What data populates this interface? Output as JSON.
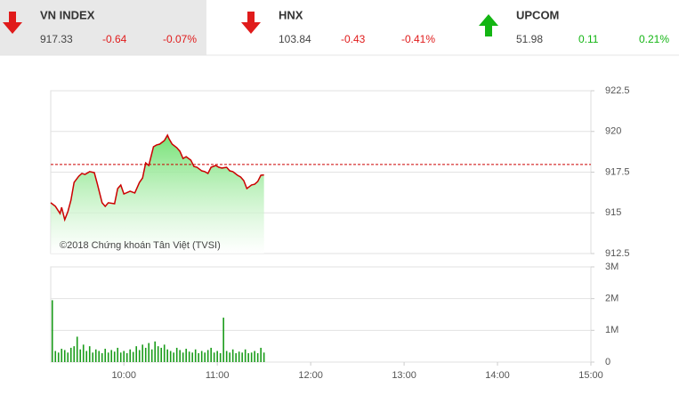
{
  "indices": [
    {
      "name": "VN INDEX",
      "value": 917.33,
      "change": -0.64,
      "percent": "-0.07%"
    },
    {
      "name": "HNX",
      "value": 103.84,
      "change": -0.43,
      "percent": "-0.41%"
    },
    {
      "name": "UPCOM",
      "value": 51.98,
      "change": 0.11,
      "percent": "0.21%"
    }
  ],
  "chart_data": [
    {
      "type": "area",
      "watermark": "©2018 Chứng khoán Tân Việt (TVSI)",
      "color": "#cc0000",
      "fill": "#6fe06f",
      "reference": 917.97,
      "xlim": [
        553,
        900
      ],
      "ylim": [
        912.5,
        922.5
      ],
      "yticks": [
        912.5,
        915,
        917.5,
        920,
        922.5
      ],
      "grid": true,
      "x": [
        553,
        556,
        559,
        560,
        562,
        564,
        566,
        568,
        571,
        573,
        575,
        578,
        581,
        583,
        586,
        588,
        590,
        594,
        596,
        598,
        600,
        604,
        607,
        610,
        612,
        614,
        616,
        619,
        621,
        623,
        626,
        628,
        629,
        631,
        634,
        636,
        638,
        640,
        643,
        645,
        647,
        650,
        652,
        654,
        656,
        659,
        661,
        663,
        666,
        668,
        670,
        673,
        675,
        677,
        679,
        682,
        684,
        686,
        688,
        690
      ],
      "values": [
        915.62,
        915.4,
        914.96,
        915.34,
        914.58,
        915.07,
        915.78,
        916.87,
        917.25,
        917.42,
        917.36,
        917.53,
        917.47,
        916.76,
        915.62,
        915.4,
        915.62,
        915.56,
        916.49,
        916.71,
        916.16,
        916.33,
        916.22,
        916.87,
        917.14,
        918.07,
        917.91,
        919.06,
        919.17,
        919.22,
        919.44,
        919.77,
        919.55,
        919.22,
        919.0,
        918.78,
        918.34,
        918.45,
        918.24,
        917.85,
        917.8,
        917.58,
        917.53,
        917.42,
        917.8,
        917.91,
        917.8,
        917.75,
        917.8,
        917.58,
        917.53,
        917.31,
        917.2,
        916.98,
        916.49,
        916.71,
        916.76,
        916.93,
        917.31,
        917.33
      ]
    },
    {
      "type": "bar",
      "color": "#1a9c1a",
      "xlim": [
        553,
        900
      ],
      "xticks": [
        {
          "value": 600,
          "label": "10:00"
        },
        {
          "value": 660,
          "label": "11:00"
        },
        {
          "value": 720,
          "label": "12:00"
        },
        {
          "value": 780,
          "label": "13:00"
        },
        {
          "value": 840,
          "label": "14:00"
        },
        {
          "value": 900,
          "label": "15:00"
        }
      ],
      "ylim": [
        0,
        3000000
      ],
      "yticks": [
        0,
        {
          "value": 1000000,
          "label": "1M"
        },
        {
          "value": 2000000,
          "label": "2M"
        },
        {
          "value": 3000000,
          "label": "3M"
        }
      ],
      "grid": true,
      "x": [
        554,
        556,
        558,
        560,
        562,
        564,
        566,
        568,
        570,
        572,
        574,
        576,
        578,
        580,
        582,
        584,
        586,
        588,
        590,
        592,
        594,
        596,
        598,
        600,
        602,
        604,
        606,
        608,
        610,
        612,
        614,
        616,
        618,
        620,
        622,
        624,
        626,
        628,
        630,
        632,
        634,
        636,
        638,
        640,
        642,
        644,
        646,
        648,
        650,
        652,
        654,
        656,
        658,
        660,
        662,
        664,
        666,
        668,
        670,
        672,
        674,
        676,
        678,
        680,
        682,
        684,
        686,
        688,
        690
      ],
      "values": [
        1950000,
        350000,
        300000,
        420000,
        380000,
        300000,
        450000,
        500000,
        800000,
        400000,
        550000,
        350000,
        500000,
        300000,
        400000,
        350000,
        280000,
        420000,
        300000,
        380000,
        330000,
        450000,
        300000,
        350000,
        280000,
        400000,
        320000,
        500000,
        380000,
        550000,
        450000,
        600000,
        400000,
        650000,
        500000,
        450000,
        550000,
        400000,
        350000,
        300000,
        450000,
        380000,
        300000,
        420000,
        330000,
        300000,
        400000,
        280000,
        350000,
        300000,
        380000,
        450000,
        300000,
        350000,
        280000,
        1400000,
        350000,
        300000,
        400000,
        280000,
        330000,
        300000,
        400000,
        280000,
        300000,
        350000,
        280000,
        450000,
        300000
      ]
    }
  ]
}
